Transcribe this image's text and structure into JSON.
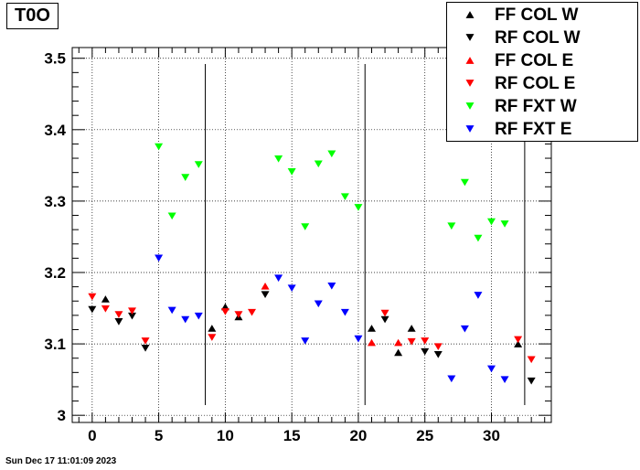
{
  "title": "T0O",
  "footer": "Sun Dec 17 11:01:09 2023",
  "chart_data": {
    "type": "scatter",
    "title": "T0O",
    "xlim": [
      -1.5,
      34.5
    ],
    "ylim": [
      2.99,
      3.515
    ],
    "xticks": [
      0,
      5,
      10,
      15,
      20,
      25,
      30
    ],
    "yticks": [
      3,
      3.1,
      3.2,
      3.3,
      3.4,
      3.5
    ],
    "xtick_labels": [
      "0",
      "5",
      "10",
      "15",
      "20",
      "25",
      "30"
    ],
    "ytick_labels": [
      "3",
      "3.1",
      "3.2",
      "3.3",
      "3.4",
      "3.5"
    ],
    "grid": true,
    "legend_position": "top-right",
    "vertical_lines": [
      8.5,
      20.5,
      32.5
    ],
    "series": [
      {
        "name": "FF COL W",
        "color": "#000000",
        "marker": "triangle-up",
        "points": [
          [
            1,
            3.163
          ],
          [
            9,
            3.122
          ],
          [
            10,
            3.152
          ],
          [
            11,
            3.138
          ],
          [
            21,
            3.122
          ],
          [
            23,
            3.088
          ],
          [
            24,
            3.122
          ],
          [
            32,
            3.1
          ]
        ]
      },
      {
        "name": "RF COL W",
        "color": "#000000",
        "marker": "triangle-down",
        "points": [
          [
            0,
            3.148
          ],
          [
            2,
            3.131
          ],
          [
            3,
            3.139
          ],
          [
            4,
            3.094
          ],
          [
            13,
            3.169
          ],
          [
            22,
            3.134
          ],
          [
            25,
            3.089
          ],
          [
            26,
            3.085
          ],
          [
            33,
            3.048
          ]
        ]
      },
      {
        "name": "FF COL E",
        "color": "#ff0000",
        "marker": "triangle-up",
        "points": [
          [
            13,
            3.181
          ],
          [
            21,
            3.102
          ],
          [
            23,
            3.102
          ]
        ]
      },
      {
        "name": "RF COL E",
        "color": "#ff0000",
        "marker": "triangle-down",
        "points": [
          [
            0,
            3.166
          ],
          [
            1,
            3.149
          ],
          [
            2,
            3.141
          ],
          [
            3,
            3.146
          ],
          [
            4,
            3.104
          ],
          [
            9,
            3.109
          ],
          [
            10,
            3.145
          ],
          [
            11,
            3.141
          ],
          [
            12,
            3.144
          ],
          [
            22,
            3.143
          ],
          [
            24,
            3.103
          ],
          [
            25,
            3.104
          ],
          [
            26,
            3.096
          ],
          [
            32,
            3.106
          ],
          [
            33,
            3.078
          ]
        ]
      },
      {
        "name": "RF FXT W",
        "color": "#00ff00",
        "marker": "triangle-down",
        "points": [
          [
            5,
            3.376
          ],
          [
            6,
            3.279
          ],
          [
            7,
            3.333
          ],
          [
            8,
            3.351
          ],
          [
            14,
            3.359
          ],
          [
            15,
            3.341
          ],
          [
            16,
            3.264
          ],
          [
            17,
            3.352
          ],
          [
            18,
            3.366
          ],
          [
            19,
            3.306
          ],
          [
            20,
            3.291
          ],
          [
            27,
            3.265
          ],
          [
            28,
            3.326
          ],
          [
            29,
            3.248
          ],
          [
            30,
            3.271
          ],
          [
            31,
            3.268
          ]
        ]
      },
      {
        "name": "RF FXT E",
        "color": "#0000ff",
        "marker": "triangle-down",
        "points": [
          [
            5,
            3.22
          ],
          [
            6,
            3.147
          ],
          [
            7,
            3.134
          ],
          [
            8,
            3.139
          ],
          [
            14,
            3.192
          ],
          [
            15,
            3.178
          ],
          [
            16,
            3.104
          ],
          [
            17,
            3.156
          ],
          [
            18,
            3.181
          ],
          [
            19,
            3.144
          ],
          [
            20,
            3.107
          ],
          [
            27,
            3.051
          ],
          [
            28,
            3.121
          ],
          [
            29,
            3.168
          ],
          [
            30,
            3.065
          ],
          [
            31,
            3.05
          ]
        ]
      }
    ]
  }
}
